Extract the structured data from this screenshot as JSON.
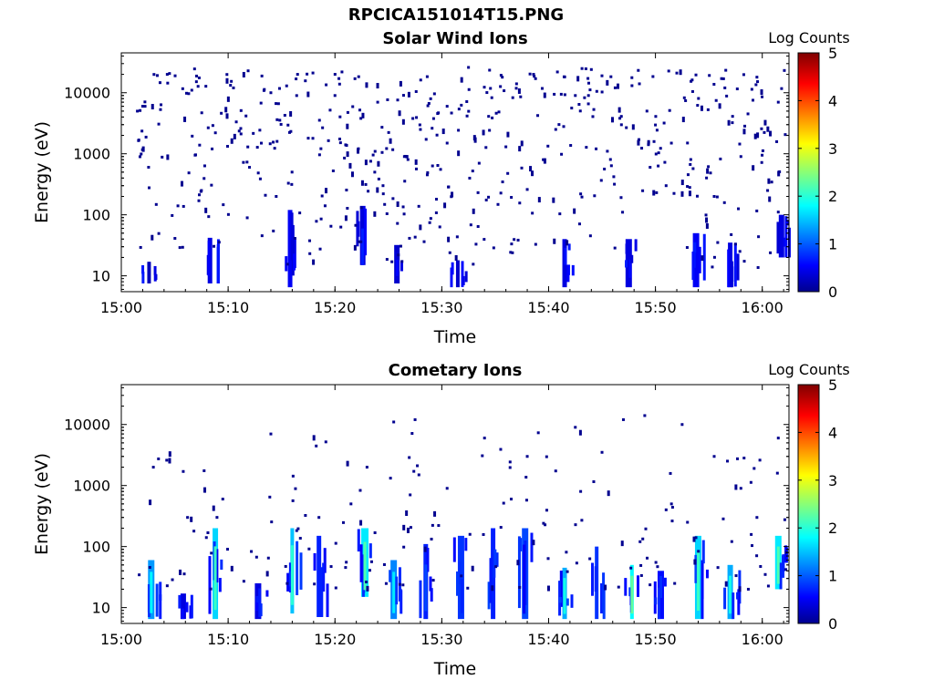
{
  "window": {
    "title": "RPCICA151014T15.PNG"
  },
  "colors": {
    "background": "#ffffff",
    "axis": "#000000",
    "scatter": "#00008f"
  },
  "chart_data": [
    {
      "type": "heatmap",
      "title": "Solar Wind Ions",
      "xlabel": "Time",
      "ylabel": "Energy (eV)",
      "xticks": [
        "15:00",
        "15:10",
        "15:20",
        "15:30",
        "15:40",
        "15:50",
        "16:00"
      ],
      "xlim_minutes_after_1500": [
        0,
        62.5
      ],
      "yscale": "log",
      "yticks": [
        10,
        100,
        1000,
        10000
      ],
      "ylim": [
        5.5,
        45000
      ],
      "colorbar": {
        "label": "Log Counts",
        "ticks": [
          0,
          1,
          2,
          3,
          4,
          5
        ],
        "colormap": "jet"
      },
      "dominant_level": 0.3,
      "columns": [
        {
          "t": 2.6,
          "emin": 7.5,
          "emax": 17,
          "level": 0.2
        },
        {
          "t": 8.3,
          "emin": 7.5,
          "emax": 42,
          "level": 0.4
        },
        {
          "t": 15.8,
          "emin": 6.5,
          "emax": 120,
          "level": 0.5
        },
        {
          "t": 22.6,
          "emin": 15,
          "emax": 140,
          "level": 0.4
        },
        {
          "t": 25.8,
          "emin": 7.5,
          "emax": 32,
          "level": 0.3
        },
        {
          "t": 31.5,
          "emin": 6.5,
          "emax": 18,
          "level": 0.3
        },
        {
          "t": 41.5,
          "emin": 6.5,
          "emax": 40,
          "level": 0.4
        },
        {
          "t": 47.5,
          "emin": 6.5,
          "emax": 40,
          "level": 0.4
        },
        {
          "t": 53.8,
          "emin": 6.5,
          "emax": 50,
          "level": 0.5
        },
        {
          "t": 57.0,
          "emin": 6.5,
          "emax": 35,
          "level": 0.4
        },
        {
          "t": 61.8,
          "emin": 20,
          "emax": 100,
          "level": 0.4
        }
      ],
      "points": [
        {
          "t": 2.0,
          "e": 6000
        },
        {
          "t": 4.3,
          "e": 20000
        },
        {
          "t": 6.6,
          "e": 11000
        },
        {
          "t": 10.5,
          "e": 12000
        },
        {
          "t": 14.0,
          "e": 10000
        },
        {
          "t": 16.5,
          "e": 20000
        },
        {
          "t": 20.0,
          "e": 9000
        },
        {
          "t": 24.0,
          "e": 7000
        },
        {
          "t": 30.5,
          "e": 6000
        },
        {
          "t": 32.5,
          "e": 26000
        },
        {
          "t": 37.0,
          "e": 14000
        },
        {
          "t": 42.5,
          "e": 9000
        },
        {
          "t": 44.0,
          "e": 24000
        },
        {
          "t": 48.5,
          "e": 14000
        },
        {
          "t": 52.0,
          "e": 21000
        },
        {
          "t": 56.5,
          "e": 12000
        },
        {
          "t": 59.5,
          "e": 18000
        },
        {
          "t": 61.5,
          "e": 7000
        },
        {
          "t": 8.5,
          "e": 1200
        },
        {
          "t": 12.0,
          "e": 600
        },
        {
          "t": 17.5,
          "e": 1800
        },
        {
          "t": 21.0,
          "e": 1400
        },
        {
          "t": 26.5,
          "e": 900
        },
        {
          "t": 28.0,
          "e": 2500
        },
        {
          "t": 33.5,
          "e": 700
        },
        {
          "t": 36.0,
          "e": 1300
        },
        {
          "t": 39.5,
          "e": 800
        },
        {
          "t": 45.5,
          "e": 1100
        },
        {
          "t": 49.5,
          "e": 600
        },
        {
          "t": 53.0,
          "e": 1500
        },
        {
          "t": 58.0,
          "e": 900
        },
        {
          "t": 7.5,
          "e": 250
        },
        {
          "t": 14.5,
          "e": 200
        },
        {
          "t": 24.5,
          "e": 300
        },
        {
          "t": 29.5,
          "e": 180
        },
        {
          "t": 38.0,
          "e": 260
        },
        {
          "t": 43.0,
          "e": 220
        },
        {
          "t": 51.0,
          "e": 300
        },
        {
          "t": 55.5,
          "e": 200
        },
        {
          "t": 60.5,
          "e": 250
        }
      ]
    },
    {
      "type": "heatmap",
      "title": "Cometary Ions",
      "xlabel": "Time",
      "ylabel": "Energy (eV)",
      "xticks": [
        "15:00",
        "15:10",
        "15:20",
        "15:30",
        "15:40",
        "15:50",
        "16:00"
      ],
      "xlim_minutes_after_1500": [
        0,
        62.5
      ],
      "yscale": "log",
      "yticks": [
        10,
        100,
        1000,
        10000
      ],
      "ylim": [
        5.5,
        45000
      ],
      "colorbar": {
        "label": "Log Counts",
        "ticks": [
          0,
          1,
          2,
          3,
          4,
          5
        ],
        "colormap": "jet"
      },
      "dominant_level": 0.5,
      "columns": [
        {
          "t": 2.8,
          "emin": 6.5,
          "emax": 60,
          "level": 1.3
        },
        {
          "t": 5.8,
          "emin": 6.5,
          "emax": 17,
          "level": 0.4
        },
        {
          "t": 8.8,
          "emin": 6.5,
          "emax": 200,
          "level": 1.6
        },
        {
          "t": 12.8,
          "emin": 6.5,
          "emax": 25,
          "level": 0.4
        },
        {
          "t": 16.0,
          "emin": 8,
          "emax": 200,
          "level": 1.5
        },
        {
          "t": 18.5,
          "emin": 7,
          "emax": 150,
          "level": 0.7
        },
        {
          "t": 22.8,
          "emin": 15,
          "emax": 200,
          "level": 1.7
        },
        {
          "t": 25.5,
          "emin": 6.5,
          "emax": 60,
          "level": 1.2
        },
        {
          "t": 28.5,
          "emin": 6.5,
          "emax": 110,
          "level": 0.7
        },
        {
          "t": 31.8,
          "emin": 6.5,
          "emax": 150,
          "level": 0.8
        },
        {
          "t": 34.8,
          "emin": 6.5,
          "emax": 200,
          "level": 0.7
        },
        {
          "t": 37.8,
          "emin": 6.5,
          "emax": 200,
          "level": 0.9
        },
        {
          "t": 41.5,
          "emin": 6.5,
          "emax": 45,
          "level": 1.4
        },
        {
          "t": 44.5,
          "emin": 6.5,
          "emax": 100,
          "level": 0.8
        },
        {
          "t": 47.8,
          "emin": 6.5,
          "emax": 50,
          "level": 1.8
        },
        {
          "t": 50.5,
          "emin": 6.5,
          "emax": 40,
          "level": 0.6
        },
        {
          "t": 54.0,
          "emin": 6.5,
          "emax": 150,
          "level": 1.6
        },
        {
          "t": 57.0,
          "emin": 6.5,
          "emax": 50,
          "level": 1.4
        },
        {
          "t": 61.5,
          "emin": 20,
          "emax": 150,
          "level": 1.7
        }
      ],
      "points": [
        {
          "t": 3.0,
          "e": 2000
        },
        {
          "t": 5.8,
          "e": 1700
        },
        {
          "t": 6.2,
          "e": 300
        },
        {
          "t": 9.5,
          "e": 600
        },
        {
          "t": 14.0,
          "e": 7000
        },
        {
          "t": 18.5,
          "e": 300
        },
        {
          "t": 21.5,
          "e": 500
        },
        {
          "t": 25.5,
          "e": 11000
        },
        {
          "t": 27.5,
          "e": 12000
        },
        {
          "t": 30.5,
          "e": 900
        },
        {
          "t": 34.0,
          "e": 6000
        },
        {
          "t": 38.0,
          "e": 3000
        },
        {
          "t": 42.5,
          "e": 9000
        },
        {
          "t": 45.0,
          "e": 3500
        },
        {
          "t": 47.0,
          "e": 12000
        },
        {
          "t": 49.0,
          "e": 14000
        },
        {
          "t": 51.5,
          "e": 500
        },
        {
          "t": 52.5,
          "e": 10000
        },
        {
          "t": 55.5,
          "e": 3000
        },
        {
          "t": 58.0,
          "e": 900
        },
        {
          "t": 61.5,
          "e": 6000
        },
        {
          "t": 23.0,
          "e": 2000
        },
        {
          "t": 36.5,
          "e": 600
        },
        {
          "t": 43.0,
          "e": 800
        },
        {
          "t": 51.0,
          "e": 400
        },
        {
          "t": 53.0,
          "e": 250
        },
        {
          "t": 59.5,
          "e": 300
        }
      ]
    }
  ]
}
